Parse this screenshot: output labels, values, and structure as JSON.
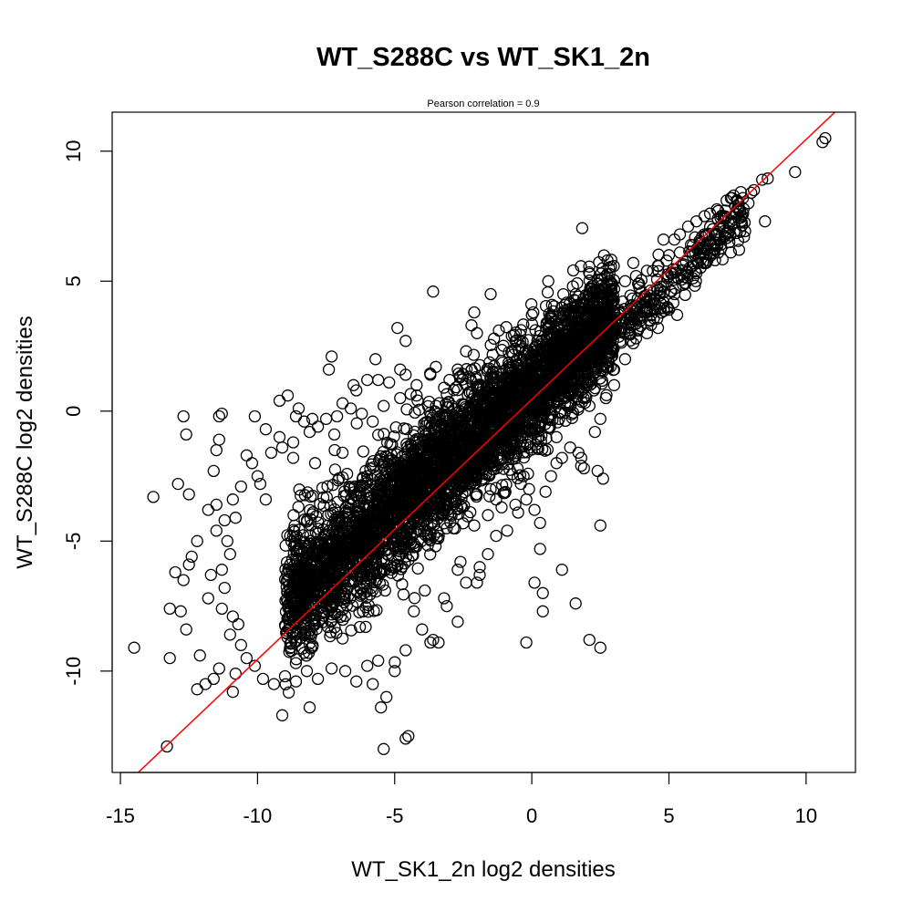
{
  "chart_data": {
    "type": "scatter",
    "title": "WT_S288C vs WT_SK1_2n",
    "subtitle": "Pearson correlation =  0.9",
    "xlabel": "WT_SK1_2n log2 densities",
    "ylabel": "WT_S288C log2 densities",
    "xlim": [
      -15.3,
      11.8
    ],
    "ylim": [
      -13.9,
      11.5
    ],
    "x_ticks": [
      -15,
      -10,
      -5,
      0,
      5,
      10
    ],
    "x_tick_labels": [
      "-15",
      "-10",
      "-5",
      "0",
      "5",
      "10"
    ],
    "y_ticks": [
      -10,
      -5,
      0,
      5,
      10
    ],
    "y_tick_labels": [
      "-10",
      "-5",
      "0",
      "5",
      "10"
    ],
    "grid": false,
    "point_color": "#000000",
    "line_color": "#ff0000",
    "reference_line": {
      "slope": 1.0,
      "intercept": 0.45
    },
    "dense_cloud": {
      "x_range": [
        -9,
        3
      ],
      "slope": 0.93,
      "intercept": 0.9,
      "spread": 1.0
    },
    "series": [
      {
        "points": [
          [
            10.7,
            10.5
          ],
          [
            10.6,
            10.35
          ],
          [
            9.6,
            9.2
          ],
          [
            8.6,
            8.95
          ],
          [
            8.4,
            8.9
          ],
          [
            8.5,
            7.3
          ],
          [
            8.1,
            8.5
          ],
          [
            8.0,
            8.4
          ],
          [
            7.9,
            8.0
          ],
          [
            7.5,
            7.8
          ],
          [
            7.3,
            8.2
          ],
          [
            7.1,
            8.1
          ],
          [
            6.8,
            7.7
          ],
          [
            6.5,
            7.6
          ],
          [
            6.3,
            7.5
          ],
          [
            6.0,
            7.3
          ],
          [
            5.7,
            7.1
          ],
          [
            5.4,
            6.8
          ],
          [
            5.2,
            6.6
          ],
          [
            4.8,
            6.6
          ],
          [
            5.5,
            5.6
          ],
          [
            5.3,
            3.7
          ],
          [
            4.8,
            4.2
          ],
          [
            4.3,
            3.5
          ],
          [
            4.0,
            3.6
          ],
          [
            3.7,
            5.7
          ],
          [
            1.5,
            4.8
          ],
          [
            0.6,
            5.0
          ],
          [
            1.6,
            4.5
          ],
          [
            1.5,
            4.0
          ],
          [
            2.1,
            4.3
          ],
          [
            3.0,
            1.0
          ],
          [
            2.7,
            1.9
          ],
          [
            2.0,
            2.4
          ],
          [
            1.5,
            1.2
          ],
          [
            1.8,
            0.8
          ],
          [
            1.4,
            0.2
          ],
          [
            1.0,
            -0.3
          ],
          [
            0.6,
            -0.3
          ],
          [
            0.9,
            -1.0
          ],
          [
            1.7,
            -1.6
          ],
          [
            1.1,
            -1.8
          ],
          [
            1.8,
            -2.1
          ],
          [
            1.9,
            -2.2
          ],
          [
            2.4,
            -2.3
          ],
          [
            2.6,
            -2.6
          ],
          [
            1.8,
            -1.8
          ],
          [
            0.7,
            -2.5
          ],
          [
            0.5,
            -3.1
          ],
          [
            -0.1,
            -3.0
          ],
          [
            -0.3,
            -2.5
          ],
          [
            -1.3,
            -2.1
          ],
          [
            -1.5,
            -3.0
          ],
          [
            -2.0,
            -3.2
          ],
          [
            -1.3,
            -3.4
          ],
          [
            -1.1,
            -3.7
          ],
          [
            -1.6,
            -4.0
          ],
          [
            -2.1,
            -4.4
          ],
          [
            -0.2,
            -3.4
          ],
          [
            -0.5,
            -3.9
          ],
          [
            0.3,
            -4.3
          ],
          [
            0.3,
            -5.3
          ],
          [
            2.5,
            -4.4
          ],
          [
            1.1,
            -6.1
          ],
          [
            0.1,
            -6.6
          ],
          [
            -1.9,
            -6.0
          ],
          [
            -1.9,
            -6.3
          ],
          [
            -2.0,
            -6.6
          ],
          [
            -2.7,
            -6.1
          ],
          [
            -2.4,
            -6.6
          ],
          [
            -2.7,
            -8.1
          ],
          [
            -3.2,
            -7.2
          ],
          [
            -3.4,
            -8.9
          ],
          [
            -3.6,
            -8.8
          ],
          [
            -0.2,
            -8.9
          ],
          [
            0.4,
            -7.0
          ],
          [
            0.4,
            -7.7
          ],
          [
            1.6,
            -7.4
          ],
          [
            2.1,
            -8.8
          ],
          [
            2.5,
            -9.1
          ],
          [
            -4.6,
            -12.6
          ],
          [
            -4.5,
            -12.5
          ],
          [
            -5.4,
            -13.0
          ],
          [
            -5.5,
            -11.4
          ],
          [
            -5.3,
            -11.0
          ],
          [
            -5.8,
            -10.5
          ],
          [
            -8.1,
            -11.4
          ],
          [
            -9.1,
            -11.7
          ],
          [
            -13.3,
            -12.9
          ],
          [
            -14.5,
            -9.1
          ],
          [
            -13.2,
            -9.5
          ],
          [
            -12.2,
            -10.7
          ],
          [
            -11.9,
            -10.5
          ],
          [
            -11.6,
            -10.3
          ],
          [
            -10.9,
            -10.8
          ],
          [
            -10.8,
            -10.1
          ],
          [
            -11.4,
            -9.9
          ],
          [
            -12.1,
            -9.4
          ],
          [
            -13.2,
            -7.6
          ],
          [
            -12.8,
            -7.7
          ],
          [
            -12.6,
            -8.4
          ],
          [
            -13.0,
            -6.2
          ],
          [
            -12.4,
            -5.6
          ],
          [
            -12.7,
            -6.5
          ],
          [
            -12.2,
            -5.0
          ],
          [
            -12.5,
            -5.9
          ],
          [
            -13.8,
            -3.3
          ],
          [
            -12.9,
            -2.8
          ],
          [
            -12.5,
            -3.2
          ],
          [
            -11.8,
            -3.8
          ],
          [
            -11.5,
            -3.6
          ],
          [
            -12.7,
            -0.2
          ],
          [
            -12.6,
            -0.9
          ],
          [
            -11.4,
            -0.2
          ],
          [
            -11.3,
            -0.1
          ],
          [
            -10.1,
            -0.2
          ],
          [
            -11.4,
            -1.1
          ],
          [
            -11.5,
            -1.5
          ],
          [
            -11.6,
            -2.3
          ],
          [
            -10.4,
            -1.7
          ],
          [
            -10.2,
            -2.0
          ],
          [
            -10.9,
            -3.4
          ],
          [
            -10.0,
            -2.5
          ],
          [
            -9.7,
            -3.4
          ],
          [
            -9.5,
            -1.6
          ],
          [
            -9.1,
            -1.4
          ],
          [
            -8.7,
            -1.8
          ],
          [
            -8.1,
            -0.8
          ],
          [
            -7.8,
            -0.6
          ],
          [
            -8.6,
            -0.2
          ],
          [
            -7.5,
            -0.3
          ],
          [
            -7.1,
            -0.2
          ],
          [
            -6.9,
            0.3
          ],
          [
            -6.2,
            -0.1
          ],
          [
            -5.8,
            -0.4
          ],
          [
            -6.4,
            0.8
          ],
          [
            -7.4,
            1.6
          ],
          [
            -7.3,
            2.1
          ],
          [
            -6.5,
            1.0
          ],
          [
            -6.0,
            1.2
          ],
          [
            -5.7,
            2.0
          ],
          [
            -5.6,
            1.2
          ],
          [
            -5.2,
            1.1
          ],
          [
            -4.8,
            1.6
          ],
          [
            -4.8,
            0.5
          ],
          [
            -4.6,
            1.4
          ],
          [
            -4.2,
            0.6
          ],
          [
            -4.9,
            3.2
          ],
          [
            -4.6,
            2.7
          ],
          [
            -3.6,
            4.6
          ],
          [
            -1.5,
            4.5
          ],
          [
            -2.1,
            3.8
          ],
          [
            -2.2,
            3.3
          ],
          [
            -2.4,
            2.3
          ],
          [
            -3.0,
            1.2
          ],
          [
            -3.2,
            0.9
          ],
          [
            -3.7,
            1.4
          ],
          [
            -5.4,
            0.2
          ],
          [
            -9.2,
            0.4
          ],
          [
            -8.9,
            0.6
          ],
          [
            -8.3,
            -0.4
          ],
          [
            -8.0,
            -0.3
          ],
          [
            -8.5,
            0.1
          ],
          [
            -9.7,
            -0.7
          ],
          [
            -9.2,
            -1.0
          ],
          [
            -8.7,
            -1.2
          ],
          [
            -9.9,
            -2.8
          ],
          [
            -10.6,
            -2.9
          ],
          [
            -10.8,
            -4.1
          ],
          [
            -11.2,
            -4.2
          ],
          [
            -11.5,
            -4.6
          ],
          [
            -11.1,
            -5.0
          ],
          [
            -11.0,
            -5.5
          ],
          [
            -11.3,
            -6.1
          ],
          [
            -11.7,
            -6.3
          ],
          [
            -11.2,
            -6.8
          ],
          [
            -11.8,
            -7.2
          ],
          [
            -11.3,
            -7.6
          ],
          [
            -10.9,
            -7.9
          ],
          [
            -10.7,
            -8.2
          ],
          [
            -11.0,
            -8.6
          ],
          [
            -10.6,
            -9.0
          ],
          [
            -10.4,
            -9.5
          ],
          [
            -10.1,
            -9.8
          ],
          [
            -9.8,
            -10.3
          ],
          [
            -9.4,
            -10.5
          ],
          [
            -9.0,
            -10.2
          ],
          [
            -8.6,
            -10.4
          ],
          [
            -8.2,
            -10.0
          ],
          [
            -7.8,
            -10.3
          ],
          [
            -7.3,
            -9.9
          ],
          [
            -6.8,
            -10.0
          ],
          [
            -6.4,
            -10.4
          ],
          [
            -6.0,
            -9.8
          ],
          [
            -5.6,
            -9.6
          ],
          [
            -5.0,
            -10.0
          ],
          [
            -4.6,
            -9.2
          ],
          [
            -4.0,
            -8.4
          ],
          [
            -3.7,
            -8.9
          ],
          [
            -4.3,
            -7.7
          ],
          [
            -3.1,
            -7.5
          ],
          [
            -3.9,
            -6.9
          ],
          [
            -2.6,
            -5.8
          ],
          [
            -1.6,
            -5.5
          ],
          [
            -1.3,
            -4.8
          ],
          [
            -0.9,
            -4.6
          ],
          [
            -0.6,
            -3.6
          ],
          [
            0.1,
            -3.8
          ],
          [
            -0.4,
            -2.8
          ],
          [
            0.9,
            -2.0
          ],
          [
            1.4,
            -1.4
          ],
          [
            2.3,
            -0.8
          ],
          [
            2.5,
            -0.3
          ],
          [
            2.1,
            0.2
          ],
          [
            2.7,
            0.5
          ],
          [
            3.0,
            1.6
          ],
          [
            3.4,
            2.0
          ],
          [
            3.8,
            2.8
          ],
          [
            4.2,
            3.0
          ],
          [
            4.6,
            3.2
          ],
          [
            5.0,
            3.9
          ],
          [
            5.2,
            4.5
          ],
          [
            5.6,
            4.9
          ],
          [
            6.0,
            5.3
          ],
          [
            6.4,
            5.8
          ],
          [
            6.8,
            6.1
          ],
          [
            7.2,
            6.5
          ],
          [
            7.6,
            6.9
          ],
          [
            7.0,
            7.4
          ],
          [
            6.6,
            7.0
          ],
          [
            6.2,
            6.7
          ],
          [
            5.8,
            6.4
          ],
          [
            5.4,
            6.1
          ],
          [
            5.0,
            6.0
          ],
          [
            4.6,
            5.6
          ],
          [
            4.2,
            5.4
          ],
          [
            3.8,
            5.2
          ],
          [
            3.4,
            5.0
          ],
          [
            3.0,
            4.7
          ],
          [
            2.6,
            4.4
          ],
          [
            -2.0,
            3.0
          ],
          [
            -1.2,
            3.1
          ],
          [
            -0.6,
            2.7
          ],
          [
            -2.7,
            1.6
          ],
          [
            -3.5,
            1.7
          ],
          [
            -4.2,
            1.0
          ],
          [
            -6.6,
            0.1
          ],
          [
            -7.2,
            -0.9
          ],
          [
            -6.9,
            -1.6
          ],
          [
            -7.9,
            -2.0
          ]
        ]
      }
    ]
  }
}
